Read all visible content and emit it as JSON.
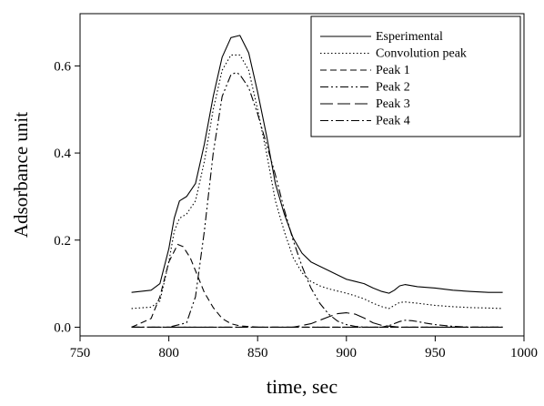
{
  "chart_data": {
    "type": "line",
    "xlabel": "time, sec",
    "ylabel": "Adsorbance unit",
    "xlim": [
      750,
      1000
    ],
    "ylim": [
      -0.02,
      0.72
    ],
    "xticks": [
      750,
      800,
      850,
      900,
      950,
      1000
    ],
    "yticks": [
      0.0,
      0.2,
      0.4,
      0.6
    ],
    "ytick_labels": [
      "0.0",
      "0.2",
      "0.4",
      "0.6"
    ],
    "grid": false,
    "legend_position": "top-right",
    "series": [
      {
        "name": "Esperimental",
        "style": "solid",
        "x": [
          779,
          790,
          795,
          800,
          803,
          806,
          810,
          815,
          820,
          825,
          830,
          835,
          840,
          845,
          850,
          855,
          860,
          865,
          870,
          875,
          880,
          885,
          890,
          895,
          900,
          905,
          910,
          915,
          920,
          924,
          927,
          930,
          933,
          940,
          950,
          960,
          970,
          980,
          988
        ],
        "y": [
          0.08,
          0.085,
          0.1,
          0.18,
          0.25,
          0.29,
          0.3,
          0.33,
          0.42,
          0.53,
          0.62,
          0.665,
          0.67,
          0.63,
          0.54,
          0.44,
          0.33,
          0.26,
          0.205,
          0.17,
          0.15,
          0.14,
          0.13,
          0.12,
          0.11,
          0.105,
          0.1,
          0.09,
          0.082,
          0.078,
          0.085,
          0.095,
          0.098,
          0.093,
          0.09,
          0.085,
          0.082,
          0.08,
          0.08
        ]
      },
      {
        "name": "Convolution peak",
        "style": "dotted",
        "x": [
          779,
          790,
          795,
          800,
          803,
          806,
          810,
          815,
          820,
          825,
          830,
          835,
          840,
          845,
          850,
          855,
          860,
          865,
          870,
          875,
          880,
          885,
          890,
          895,
          900,
          905,
          910,
          915,
          920,
          924,
          927,
          930,
          933,
          940,
          950,
          960,
          970,
          980,
          988
        ],
        "y": [
          0.043,
          0.046,
          0.06,
          0.15,
          0.22,
          0.25,
          0.26,
          0.29,
          0.38,
          0.5,
          0.59,
          0.625,
          0.625,
          0.59,
          0.5,
          0.4,
          0.29,
          0.22,
          0.16,
          0.125,
          0.105,
          0.095,
          0.088,
          0.083,
          0.078,
          0.072,
          0.065,
          0.055,
          0.047,
          0.043,
          0.05,
          0.057,
          0.058,
          0.055,
          0.05,
          0.047,
          0.045,
          0.044,
          0.043
        ]
      },
      {
        "name": "Peak 1",
        "style": "dashed",
        "x": [
          779,
          790,
          795,
          800,
          805,
          808,
          812,
          816,
          820,
          825,
          830,
          835,
          840,
          850,
          860,
          880,
          920,
          988
        ],
        "y": [
          0.0,
          0.02,
          0.07,
          0.15,
          0.19,
          0.185,
          0.16,
          0.12,
          0.08,
          0.045,
          0.02,
          0.008,
          0.003,
          0.0,
          0.0,
          0.0,
          0.0,
          0.0
        ]
      },
      {
        "name": "Peak 2",
        "style": "dash-dot-dot",
        "x": [
          779,
          800,
          810,
          815,
          820,
          825,
          830,
          835,
          838,
          840,
          845,
          850,
          855,
          860,
          865,
          870,
          875,
          880,
          885,
          890,
          895,
          900,
          905,
          910,
          920,
          988
        ],
        "y": [
          0.0,
          0.0,
          0.01,
          0.07,
          0.22,
          0.4,
          0.53,
          0.58,
          0.585,
          0.58,
          0.55,
          0.49,
          0.42,
          0.35,
          0.27,
          0.2,
          0.14,
          0.09,
          0.055,
          0.03,
          0.014,
          0.006,
          0.002,
          0.0,
          0.0,
          0.0
        ]
      },
      {
        "name": "Peak 3",
        "style": "long-dash",
        "x": [
          779,
          870,
          880,
          890,
          895,
          900,
          905,
          910,
          915,
          920,
          930,
          988
        ],
        "y": [
          0.0,
          0.0,
          0.008,
          0.024,
          0.031,
          0.033,
          0.03,
          0.021,
          0.01,
          0.004,
          0.0,
          0.0
        ]
      },
      {
        "name": "Peak 4",
        "style": "dash-dot",
        "x": [
          779,
          920,
          925,
          930,
          933,
          937,
          940,
          945,
          950,
          955,
          960,
          970,
          988
        ],
        "y": [
          0.0,
          0.0,
          0.005,
          0.013,
          0.016,
          0.015,
          0.013,
          0.009,
          0.006,
          0.004,
          0.002,
          0.0,
          0.0
        ]
      }
    ]
  }
}
